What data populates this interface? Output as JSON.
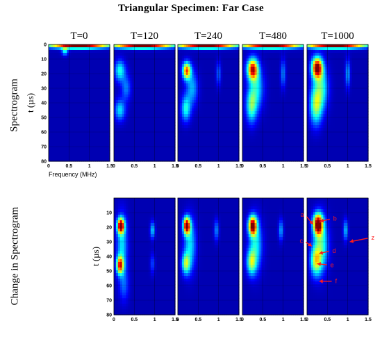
{
  "title": "Triangular Specimen: Far Case",
  "row_labels": [
    "Spectrogram",
    "Change in Spectrogram"
  ],
  "colors": {
    "background_low": "#00008f",
    "colormap": [
      "#00007f",
      "#0000ff",
      "#007fff",
      "#00ffff",
      "#7fff7f",
      "#ffff00",
      "#ff7f00",
      "#ff0000",
      "#7f0000"
    ]
  },
  "chart_data": [
    {
      "type": "heatmap",
      "row": "Spectrogram",
      "panel_title": "T=0",
      "xlabel": "Frequency (MHz)",
      "ylabel": "t (µs)",
      "xlim": [
        0,
        1.5
      ],
      "ylim": [
        0,
        80
      ],
      "x_ticks": [
        "0",
        "0.5",
        "1",
        "1.5"
      ],
      "y_ticks": [
        "0",
        "10",
        "20",
        "30",
        "40",
        "50",
        "60",
        "70",
        "80"
      ],
      "y_inverted": true,
      "grid": true,
      "blobs": [
        {
          "f": 0.75,
          "t": 0.8,
          "sf": 0.55,
          "st": 1.4,
          "a": 1.0
        },
        {
          "f": 0.4,
          "t": 4.5,
          "sf": 0.05,
          "st": 2.0,
          "a": 0.35
        }
      ]
    },
    {
      "type": "heatmap",
      "row": "Spectrogram",
      "panel_title": "T=120",
      "xlabel": "",
      "ylabel": "",
      "xlim": [
        0,
        1.5
      ],
      "ylim": [
        0,
        80
      ],
      "x_ticks": [
        "0",
        "0.5",
        "1",
        "1.5"
      ],
      "y_ticks": [],
      "y_inverted": true,
      "grid": true,
      "blobs": [
        {
          "f": 0.7,
          "t": 0.8,
          "sf": 0.55,
          "st": 1.4,
          "a": 1.0
        },
        {
          "f": 0.15,
          "t": 18,
          "sf": 0.09,
          "st": 5,
          "a": 0.35
        },
        {
          "f": 0.15,
          "t": 45,
          "sf": 0.09,
          "st": 5,
          "a": 0.3
        },
        {
          "f": 0.3,
          "t": 30,
          "sf": 0.08,
          "st": 6,
          "a": 0.2
        }
      ]
    },
    {
      "type": "heatmap",
      "row": "Spectrogram",
      "panel_title": "T=240",
      "xlabel": "",
      "ylabel": "",
      "xlim": [
        0,
        1.5
      ],
      "ylim": [
        0,
        80
      ],
      "x_ticks": [
        "0",
        "0.5",
        "1",
        "1.5"
      ],
      "y_ticks": [],
      "y_inverted": true,
      "grid": true,
      "blobs": [
        {
          "f": 0.7,
          "t": 0.8,
          "sf": 0.55,
          "st": 1.4,
          "a": 1.0
        },
        {
          "f": 0.22,
          "t": 18,
          "sf": 0.07,
          "st": 4,
          "a": 0.75
        },
        {
          "f": 0.2,
          "t": 44,
          "sf": 0.08,
          "st": 6,
          "a": 0.35
        },
        {
          "f": 0.35,
          "t": 30,
          "sf": 0.1,
          "st": 8,
          "a": 0.25
        },
        {
          "f": 1.0,
          "t": 20,
          "sf": 0.04,
          "st": 6,
          "a": 0.18
        }
      ]
    },
    {
      "type": "heatmap",
      "row": "Spectrogram",
      "panel_title": "T=480",
      "xlabel": "",
      "ylabel": "",
      "xlim": [
        0,
        1.5
      ],
      "ylim": [
        0,
        80
      ],
      "x_ticks": [
        "0",
        "0.5",
        "1",
        "1.5"
      ],
      "y_ticks": [],
      "y_inverted": true,
      "grid": true,
      "blobs": [
        {
          "f": 0.7,
          "t": 0.8,
          "sf": 0.55,
          "st": 1.4,
          "a": 1.0
        },
        {
          "f": 0.25,
          "t": 17,
          "sf": 0.09,
          "st": 5,
          "a": 0.85
        },
        {
          "f": 0.22,
          "t": 42,
          "sf": 0.09,
          "st": 8,
          "a": 0.4
        },
        {
          "f": 0.35,
          "t": 30,
          "sf": 0.12,
          "st": 10,
          "a": 0.3
        },
        {
          "f": 1.0,
          "t": 20,
          "sf": 0.04,
          "st": 7,
          "a": 0.22
        }
      ]
    },
    {
      "type": "heatmap",
      "row": "Spectrogram",
      "panel_title": "T=1000",
      "xlabel": "",
      "ylabel": "",
      "xlim": [
        0,
        1.5
      ],
      "ylim": [
        0,
        80
      ],
      "x_ticks": [
        "0",
        "0.5",
        "1",
        "1.5"
      ],
      "y_ticks": [],
      "y_inverted": true,
      "grid": true,
      "blobs": [
        {
          "f": 0.7,
          "t": 0.8,
          "sf": 0.55,
          "st": 1.4,
          "a": 1.0
        },
        {
          "f": 0.25,
          "t": 16,
          "sf": 0.09,
          "st": 5,
          "a": 0.95
        },
        {
          "f": 0.22,
          "t": 42,
          "sf": 0.1,
          "st": 9,
          "a": 0.45
        },
        {
          "f": 0.35,
          "t": 30,
          "sf": 0.12,
          "st": 10,
          "a": 0.35
        },
        {
          "f": 1.0,
          "t": 20,
          "sf": 0.04,
          "st": 7,
          "a": 0.25
        }
      ]
    },
    {
      "type": "heatmap",
      "row": "Change in Spectrogram",
      "panel_title": "",
      "xlabel": "",
      "ylabel": "t (µs)",
      "xlim": [
        0,
        1.5
      ],
      "ylim": [
        0,
        80
      ],
      "x_ticks": [
        "0",
        "0.5",
        "1",
        "1.5"
      ],
      "y_ticks": [
        "10",
        "20",
        "30",
        "40",
        "50",
        "60",
        "70",
        "80"
      ],
      "y_inverted": true,
      "grid": true,
      "blobs": [
        {
          "f": 0.17,
          "t": 19,
          "sf": 0.06,
          "st": 3.5,
          "a": 0.95
        },
        {
          "f": 0.15,
          "t": 46,
          "sf": 0.06,
          "st": 4,
          "a": 0.75
        },
        {
          "f": 0.2,
          "t": 32,
          "sf": 0.09,
          "st": 14,
          "a": 0.3
        },
        {
          "f": 0.25,
          "t": 60,
          "sf": 0.08,
          "st": 8,
          "a": 0.15
        },
        {
          "f": 0.95,
          "t": 22,
          "sf": 0.04,
          "st": 4,
          "a": 0.3
        },
        {
          "f": 0.95,
          "t": 45,
          "sf": 0.04,
          "st": 5,
          "a": 0.15
        }
      ]
    },
    {
      "type": "heatmap",
      "row": "Change in Spectrogram",
      "panel_title": "",
      "xlabel": "",
      "ylabel": "",
      "xlim": [
        0,
        1.5
      ],
      "ylim": [
        0,
        80
      ],
      "x_ticks": [
        "0",
        "0.5",
        "1",
        "1.5"
      ],
      "y_ticks": [],
      "y_inverted": true,
      "grid": true,
      "blobs": [
        {
          "f": 0.22,
          "t": 19,
          "sf": 0.06,
          "st": 4,
          "a": 0.95
        },
        {
          "f": 0.2,
          "t": 45,
          "sf": 0.07,
          "st": 5,
          "a": 0.45
        },
        {
          "f": 0.3,
          "t": 32,
          "sf": 0.1,
          "st": 12,
          "a": 0.3
        },
        {
          "f": 0.95,
          "t": 22,
          "sf": 0.04,
          "st": 5,
          "a": 0.22
        }
      ]
    },
    {
      "type": "heatmap",
      "row": "Change in Spectrogram",
      "panel_title": "",
      "xlabel": "",
      "ylabel": "",
      "xlim": [
        0,
        1.5
      ],
      "ylim": [
        0,
        80
      ],
      "x_ticks": [
        "0",
        "0.5",
        "1",
        "1.5"
      ],
      "y_ticks": [],
      "y_inverted": true,
      "grid": true,
      "blobs": [
        {
          "f": 0.25,
          "t": 19,
          "sf": 0.07,
          "st": 4.5,
          "a": 0.95
        },
        {
          "f": 0.22,
          "t": 44,
          "sf": 0.08,
          "st": 6,
          "a": 0.45
        },
        {
          "f": 0.33,
          "t": 32,
          "sf": 0.11,
          "st": 12,
          "a": 0.32
        },
        {
          "f": 0.95,
          "t": 22,
          "sf": 0.04,
          "st": 5,
          "a": 0.25
        }
      ]
    },
    {
      "type": "heatmap",
      "row": "Change in Spectrogram",
      "panel_title": "",
      "xlabel": "",
      "ylabel": "",
      "xlim": [
        0,
        1.5
      ],
      "ylim": [
        0,
        80
      ],
      "x_ticks": [
        "0",
        "0.5",
        "1",
        "1.5"
      ],
      "y_ticks": [],
      "y_inverted": true,
      "grid": true,
      "blobs": [
        {
          "f": 0.27,
          "t": 18,
          "sf": 0.08,
          "st": 5,
          "a": 1.0
        },
        {
          "f": 0.22,
          "t": 43,
          "sf": 0.09,
          "st": 7,
          "a": 0.5
        },
        {
          "f": 0.35,
          "t": 32,
          "sf": 0.12,
          "st": 12,
          "a": 0.38
        },
        {
          "f": 0.95,
          "t": 22,
          "sf": 0.04,
          "st": 5,
          "a": 0.28
        }
      ],
      "annotations": [
        {
          "label": "a",
          "f": 0.15,
          "t": 18
        },
        {
          "label": "b",
          "f": 0.32,
          "t": 16
        },
        {
          "label": "c",
          "f": 0.12,
          "t": 33
        },
        {
          "label": "d",
          "f": 0.3,
          "t": 38
        },
        {
          "label": "e",
          "f": 0.25,
          "t": 45
        },
        {
          "label": "f",
          "f": 0.3,
          "t": 57
        },
        {
          "label": "z",
          "f": 1.05,
          "t": 30
        }
      ]
    }
  ]
}
